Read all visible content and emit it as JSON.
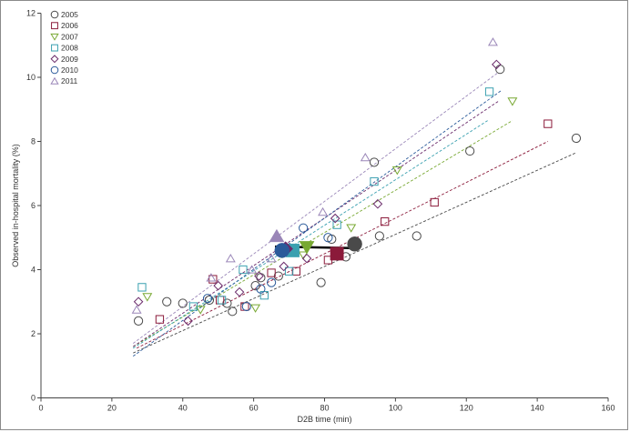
{
  "chart_data": {
    "type": "scatter",
    "title": "",
    "xlabel": "D2B time (min)",
    "ylabel": "Observed in-hospital mortality (%)",
    "xlim": [
      0,
      160
    ],
    "ylim": [
      0,
      12
    ],
    "xticks": [
      0,
      20,
      40,
      60,
      80,
      100,
      120,
      140,
      160
    ],
    "yticks": [
      0,
      2,
      4,
      6,
      8,
      10,
      12
    ],
    "grid": false,
    "legend_position": "top-left",
    "series": [
      {
        "name": "2005",
        "marker": "circle",
        "color": "#4a4a4a",
        "points": [
          [
            27.5,
            2.4
          ],
          [
            35.5,
            3.0
          ],
          [
            40,
            2.95
          ],
          [
            47.5,
            3.05
          ],
          [
            52.5,
            2.95
          ],
          [
            54,
            2.7
          ],
          [
            60.5,
            3.5
          ],
          [
            62,
            3.75
          ],
          [
            67,
            3.8
          ],
          [
            79,
            3.6
          ],
          [
            82,
            4.95
          ],
          [
            86,
            4.4
          ],
          [
            94,
            7.35
          ],
          [
            95.5,
            5.05
          ],
          [
            106,
            5.05
          ],
          [
            121,
            7.7
          ],
          [
            129.5,
            10.25
          ],
          [
            151,
            8.1
          ]
        ],
        "trend": [
          [
            26,
            1.4
          ],
          [
            151,
            7.65
          ]
        ],
        "mean": [
          88.5,
          4.8
        ]
      },
      {
        "name": "2006",
        "marker": "square",
        "color": "#8b1a3a",
        "points": [
          [
            33.5,
            2.45
          ],
          [
            48.5,
            3.7
          ],
          [
            50.5,
            3.05
          ],
          [
            57.5,
            2.85
          ],
          [
            65,
            3.9
          ],
          [
            72,
            3.95
          ],
          [
            81,
            4.3
          ],
          [
            97,
            5.5
          ],
          [
            111,
            6.1
          ],
          [
            143,
            8.55
          ]
        ],
        "trend": [
          [
            27,
            1.55
          ],
          [
            143,
            8.0
          ]
        ],
        "mean": [
          83.5,
          4.5
        ]
      },
      {
        "name": "2007",
        "marker": "triangle-down",
        "color": "#78a832",
        "points": [
          [
            30,
            3.15
          ],
          [
            45,
            2.75
          ],
          [
            60.5,
            2.8
          ],
          [
            74,
            4.45
          ],
          [
            87.5,
            5.3
          ],
          [
            100.5,
            7.1
          ],
          [
            133,
            9.25
          ]
        ],
        "trend": [
          [
            26,
            1.6
          ],
          [
            133,
            8.65
          ]
        ],
        "mean": [
          75,
          4.7
        ]
      },
      {
        "name": "2008",
        "marker": "square",
        "color": "#3aa0b0",
        "points": [
          [
            28.5,
            3.45
          ],
          [
            43,
            2.85
          ],
          [
            51,
            3.05
          ],
          [
            57,
            4.0
          ],
          [
            63,
            3.2
          ],
          [
            70,
            3.95
          ],
          [
            83.5,
            5.4
          ],
          [
            94,
            6.75
          ],
          [
            126.5,
            9.55
          ]
        ],
        "trend": [
          [
            26,
            1.55
          ],
          [
            126,
            8.65
          ]
        ],
        "mean": [
          71,
          4.6
        ]
      },
      {
        "name": "2009",
        "marker": "diamond",
        "color": "#6a2a6a",
        "points": [
          [
            27.5,
            3.0
          ],
          [
            41.5,
            2.4
          ],
          [
            50,
            3.5
          ],
          [
            56,
            3.3
          ],
          [
            61.5,
            3.8
          ],
          [
            68.5,
            4.1
          ],
          [
            75,
            4.35
          ],
          [
            83,
            5.6
          ],
          [
            95,
            6.05
          ],
          [
            128.5,
            10.4
          ]
        ],
        "trend": [
          [
            26,
            1.6
          ],
          [
            129,
            9.25
          ]
        ],
        "mean": [
          69,
          4.65
        ]
      },
      {
        "name": "2010",
        "marker": "circle",
        "color": "#2a5a9a",
        "points": [
          [
            47,
            3.1
          ],
          [
            58,
            2.85
          ],
          [
            62,
            3.4
          ],
          [
            65,
            3.6
          ],
          [
            74,
            5.3
          ],
          [
            81,
            5.0
          ]
        ],
        "trend": [
          [
            26,
            1.3
          ],
          [
            130,
            9.6
          ]
        ],
        "mean": [
          68,
          4.6
        ]
      },
      {
        "name": "2011",
        "marker": "triangle-up",
        "color": "#9a86b8",
        "points": [
          [
            27,
            2.75
          ],
          [
            53.5,
            4.35
          ],
          [
            48,
            3.75
          ],
          [
            59.5,
            4.0
          ],
          [
            65,
            4.35
          ],
          [
            79.5,
            5.8
          ],
          [
            91.5,
            7.5
          ],
          [
            127.5,
            11.1
          ]
        ],
        "trend": [
          [
            26,
            1.7
          ],
          [
            129,
            10.15
          ]
        ],
        "mean": [
          66.5,
          5.05
        ]
      }
    ],
    "overall_trend": [
      [
        66,
        4.72
      ],
      [
        88.5,
        4.67
      ]
    ]
  }
}
